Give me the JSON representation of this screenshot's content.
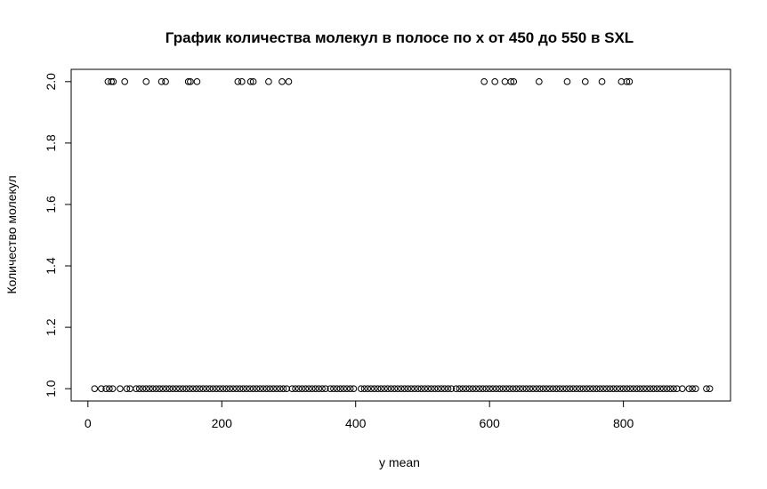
{
  "chart_data": {
    "type": "scatter",
    "title": "График количества молекул в полосе по x от 450 до 550 в SXL",
    "xlabel": "y mean",
    "ylabel": "Количество молекул",
    "xlim": [
      -25,
      960
    ],
    "ylim": [
      0.96,
      2.04
    ],
    "x_ticks": [
      0,
      200,
      400,
      600,
      800
    ],
    "y_ticks": [
      1.0,
      1.2,
      1.4,
      1.6,
      1.8,
      2.0
    ],
    "x_tick_labels": [
      "0",
      "200",
      "400",
      "600",
      "800"
    ],
    "y_tick_labels": [
      "1.0",
      "1.2",
      "1.4",
      "1.6",
      "1.8",
      "2.0"
    ],
    "grid": false,
    "marker": "open-circle",
    "series": [
      {
        "points": [
          {
            "x": 30,
            "y": 2
          },
          {
            "x": 35,
            "y": 2
          },
          {
            "x": 38,
            "y": 2
          },
          {
            "x": 55,
            "y": 2
          },
          {
            "x": 87,
            "y": 2
          },
          {
            "x": 110,
            "y": 2
          },
          {
            "x": 116,
            "y": 2
          },
          {
            "x": 150,
            "y": 2
          },
          {
            "x": 153,
            "y": 2
          },
          {
            "x": 163,
            "y": 2
          },
          {
            "x": 224,
            "y": 2
          },
          {
            "x": 230,
            "y": 2
          },
          {
            "x": 243,
            "y": 2
          },
          {
            "x": 247,
            "y": 2
          },
          {
            "x": 270,
            "y": 2
          },
          {
            "x": 290,
            "y": 2
          },
          {
            "x": 300,
            "y": 2
          },
          {
            "x": 592,
            "y": 2
          },
          {
            "x": 608,
            "y": 2
          },
          {
            "x": 623,
            "y": 2
          },
          {
            "x": 632,
            "y": 2
          },
          {
            "x": 636,
            "y": 2
          },
          {
            "x": 674,
            "y": 2
          },
          {
            "x": 716,
            "y": 2
          },
          {
            "x": 743,
            "y": 2
          },
          {
            "x": 768,
            "y": 2
          },
          {
            "x": 797,
            "y": 2
          },
          {
            "x": 805,
            "y": 2
          },
          {
            "x": 809,
            "y": 2
          }
        ],
        "y1_intervals": [
          [
            10,
            12
          ],
          [
            20,
            22
          ],
          [
            27,
            38
          ],
          [
            48,
            52
          ],
          [
            58,
            64
          ],
          [
            72,
            300
          ],
          [
            305,
            355
          ],
          [
            362,
            400
          ],
          [
            408,
            545
          ],
          [
            550,
            880
          ],
          [
            888,
            892
          ],
          [
            898,
            910
          ],
          [
            924,
            930
          ]
        ],
        "y1_spacing": 5
      }
    ]
  }
}
